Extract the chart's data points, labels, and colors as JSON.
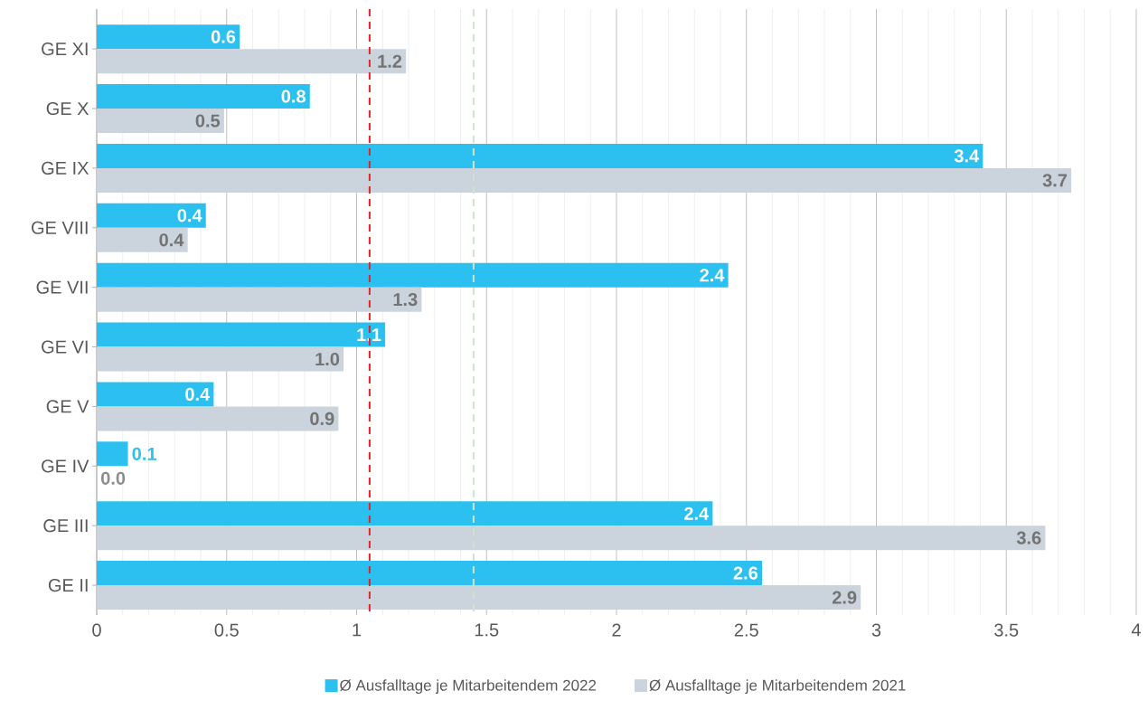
{
  "chart_data": {
    "type": "bar",
    "orientation": "horizontal",
    "categories": [
      "GE XI",
      "GE X",
      "GE IX",
      "GE VIII",
      "GE VII",
      "GE VI",
      "GE V",
      "GE IV",
      "GE III",
      "GE II"
    ],
    "series": [
      {
        "name": "Ø Ausfalltage je Mitarbeitendem 2022",
        "color": "#2cc0f0",
        "values": [
          0.55,
          0.82,
          3.41,
          0.42,
          2.43,
          1.11,
          0.45,
          0.12,
          2.37,
          2.56
        ],
        "value_labels": [
          "0.6",
          "0.8",
          "3.4",
          "0.4",
          "2.4",
          "1.1",
          "0.4",
          "0.1",
          "2.4",
          "2.6"
        ]
      },
      {
        "name": "Ø Ausfalltage je Mitarbeitendem 2021",
        "color": "#cbd3dc",
        "values": [
          1.19,
          0.49,
          3.75,
          0.35,
          1.25,
          0.95,
          0.93,
          0,
          3.65,
          2.94
        ],
        "value_labels": [
          "1.2",
          "0.5",
          "3.7",
          "0.4",
          "1.3",
          "1.0",
          "0.9",
          "0.0",
          "3.6",
          "2.9"
        ]
      }
    ],
    "xlim": [
      0,
      4
    ],
    "xticks": [
      0,
      0.5,
      1,
      1.5,
      2,
      2.5,
      3,
      3.5,
      4
    ],
    "ref_lines": [
      {
        "axis": "x",
        "value": 1.05,
        "color": "#e0242a",
        "line_style": "dashed"
      },
      {
        "axis": "x",
        "value": 1.45,
        "color": "#cfe3cf",
        "line_style": "dashed"
      }
    ],
    "grid": "x",
    "legend": "bottom"
  }
}
